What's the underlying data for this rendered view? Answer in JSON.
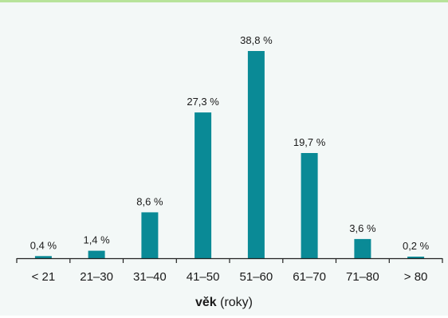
{
  "colors": {
    "bar": "#0a8a96",
    "axis": "#222222",
    "background": "#f3f8f7",
    "top_rule": "#b7e39a"
  },
  "chart_data": {
    "type": "bar",
    "categories": [
      "< 21",
      "21–30",
      "31–40",
      "41–50",
      "51–60",
      "61–70",
      "71–80",
      "> 80"
    ],
    "values": [
      0.4,
      1.4,
      8.6,
      27.3,
      38.8,
      19.7,
      3.6,
      0.2
    ],
    "data_labels": [
      "0,4 %",
      "1,4 %",
      "8,6 %",
      "27,3 %",
      "38,8 %",
      "19,7 %",
      "3,6 %",
      "0,2 %"
    ],
    "xlabel": {
      "bold": "věk",
      "rest": "(roky)"
    },
    "ylabel": "",
    "ylim": [
      0,
      40
    ],
    "grid": false,
    "legend": "none"
  }
}
